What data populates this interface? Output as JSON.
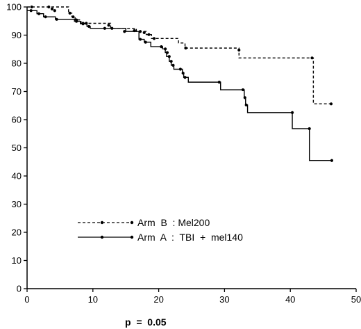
{
  "chart_data": {
    "type": "line",
    "title": "",
    "xlabel": "",
    "ylabel": "",
    "xlim": [
      0,
      50
    ],
    "ylim": [
      0,
      100
    ],
    "x_ticks": [
      0,
      10,
      20,
      30,
      40,
      50
    ],
    "y_ticks": [
      0,
      10,
      20,
      30,
      40,
      50,
      60,
      70,
      80,
      90,
      100
    ],
    "grid": false,
    "legend_position": "lower-left",
    "annotation": "p  =  0.05",
    "series": [
      {
        "name": "Arm  B  : Mel200",
        "style": "dashed",
        "color": "#000000",
        "steps": [
          [
            0,
            100
          ],
          [
            6.3,
            97.8
          ],
          [
            6.8,
            96.5
          ],
          [
            7.3,
            95.4
          ],
          [
            8.2,
            94.2
          ],
          [
            12.7,
            92.4
          ],
          [
            16.6,
            91.3
          ],
          [
            18.1,
            90.2
          ],
          [
            18.9,
            88.8
          ],
          [
            23,
            87.2
          ],
          [
            24,
            85.4
          ],
          [
            32.2,
            81.9
          ],
          [
            43.5,
            65.6
          ],
          [
            46.2,
            65.6
          ]
        ],
        "censored": [
          [
            0.7,
            100
          ],
          [
            3.3,
            100
          ],
          [
            3.8,
            99.3
          ],
          [
            4.2,
            98.7
          ],
          [
            6.5,
            97.8
          ],
          [
            7,
            96.5
          ],
          [
            7.5,
            95.4
          ],
          [
            8.5,
            94.2
          ],
          [
            9,
            94.2
          ],
          [
            12.4,
            93.5
          ],
          [
            12.9,
            92.4
          ],
          [
            16.3,
            91.6
          ],
          [
            17.2,
            91.3
          ],
          [
            17.8,
            90.9
          ],
          [
            18.5,
            90.2
          ],
          [
            19.3,
            88.8
          ],
          [
            24.1,
            85.4
          ],
          [
            32.2,
            84.7
          ],
          [
            43.3,
            81.9
          ],
          [
            46.2,
            65.6
          ]
        ]
      },
      {
        "name": "Arm  A  :  TBI  +  mel140",
        "style": "solid",
        "color": "#000000",
        "steps": [
          [
            0,
            98.7
          ],
          [
            1.5,
            97.6
          ],
          [
            2.5,
            96.5
          ],
          [
            4.3,
            95.6
          ],
          [
            7.2,
            94.9
          ],
          [
            8.1,
            94
          ],
          [
            9.1,
            93.1
          ],
          [
            9.6,
            92.4
          ],
          [
            15,
            91.3
          ],
          [
            17,
            88.5
          ],
          [
            17.8,
            87.5
          ],
          [
            18.8,
            85.9
          ],
          [
            20.6,
            85.1
          ],
          [
            21,
            83.8
          ],
          [
            21.2,
            82.4
          ],
          [
            21.6,
            80.7
          ],
          [
            21.9,
            79.3
          ],
          [
            22.3,
            77.9
          ],
          [
            23.6,
            76.5
          ],
          [
            23.8,
            75
          ],
          [
            24.5,
            73.3
          ],
          [
            29.4,
            70.6
          ],
          [
            33,
            67.8
          ],
          [
            33.2,
            65.2
          ],
          [
            33.5,
            62.5
          ],
          [
            40.3,
            56.8
          ],
          [
            42.9,
            45.5
          ],
          [
            46.3,
            45.5
          ]
        ],
        "censored": [
          [
            0.6,
            98.7
          ],
          [
            1.8,
            97.6
          ],
          [
            2.8,
            96.5
          ],
          [
            4.5,
            95.6
          ],
          [
            7.5,
            94.9
          ],
          [
            8.5,
            94
          ],
          [
            9.4,
            93.1
          ],
          [
            11.8,
            92.4
          ],
          [
            14.8,
            91.3
          ],
          [
            17.2,
            88.5
          ],
          [
            18,
            87.5
          ],
          [
            20.4,
            85.9
          ],
          [
            21,
            85.1
          ],
          [
            21.3,
            83.8
          ],
          [
            21.6,
            82.4
          ],
          [
            21.9,
            80.7
          ],
          [
            22.2,
            79.3
          ],
          [
            23.3,
            77.9
          ],
          [
            23.7,
            76.5
          ],
          [
            24,
            75
          ],
          [
            29.2,
            73.3
          ],
          [
            32.8,
            70.6
          ],
          [
            33.1,
            67.8
          ],
          [
            33.3,
            65.2
          ],
          [
            40.3,
            62.5
          ],
          [
            42.9,
            56.8
          ],
          [
            46.3,
            45.5
          ]
        ]
      }
    ]
  }
}
